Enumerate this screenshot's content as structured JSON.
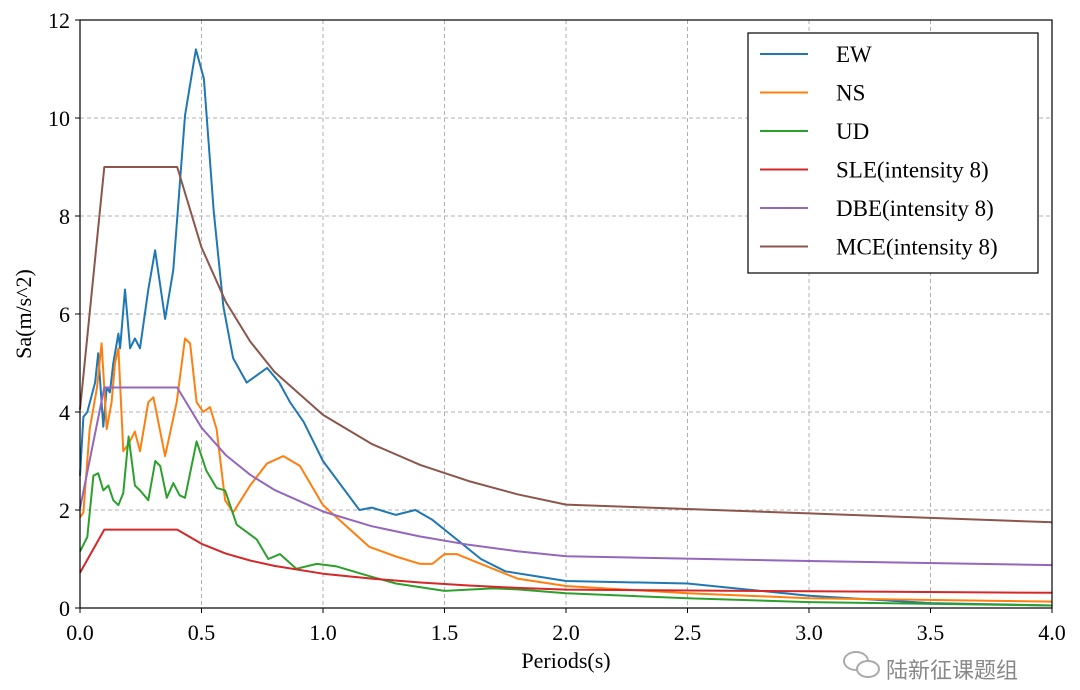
{
  "chart_data": {
    "type": "line",
    "title": "",
    "xlabel": "Periods(s)",
    "ylabel": "Sa(m/s^2)",
    "xlim": [
      0,
      4.0
    ],
    "ylim": [
      0,
      12
    ],
    "xticks": [
      "0.0",
      "0.5",
      "1.0",
      "1.5",
      "2.0",
      "2.5",
      "3.0",
      "3.5",
      "4.0"
    ],
    "yticks": [
      "0",
      "2",
      "4",
      "6",
      "8",
      "10",
      "12"
    ],
    "grid": true,
    "legend_position": "top-right",
    "series": [
      {
        "name": "EW",
        "color": "#1f77b4",
        "x": [
          0,
          0.014,
          0.03,
          0.062,
          0.075,
          0.096,
          0.11,
          0.123,
          0.137,
          0.158,
          0.165,
          0.185,
          0.206,
          0.226,
          0.247,
          0.281,
          0.309,
          0.35,
          0.384,
          0.432,
          0.477,
          0.51,
          0.55,
          0.59,
          0.63,
          0.686,
          0.77,
          0.82,
          0.864,
          0.92,
          1.0,
          1.15,
          1.2,
          1.3,
          1.38,
          1.45,
          1.55,
          1.65,
          1.75,
          2.0,
          2.5,
          3.0,
          3.5,
          4.0
        ],
        "y": [
          2.7,
          3.9,
          4.0,
          4.6,
          5.2,
          3.7,
          4.5,
          4.4,
          5.0,
          5.6,
          5.3,
          6.5,
          5.3,
          5.5,
          5.3,
          6.5,
          7.3,
          5.9,
          6.9,
          10.05,
          11.4,
          10.8,
          8.1,
          6.15,
          5.1,
          4.6,
          4.9,
          4.6,
          4.2,
          3.8,
          3.0,
          2.0,
          2.05,
          1.9,
          2.0,
          1.8,
          1.4,
          1.0,
          0.75,
          0.55,
          0.5,
          0.25,
          0.1,
          0.05
        ]
      },
      {
        "name": "NS",
        "color": "#ff7f0e",
        "x": [
          0,
          0.014,
          0.04,
          0.07,
          0.089,
          0.11,
          0.13,
          0.144,
          0.158,
          0.178,
          0.2,
          0.226,
          0.247,
          0.281,
          0.302,
          0.35,
          0.398,
          0.432,
          0.453,
          0.48,
          0.507,
          0.535,
          0.562,
          0.597,
          0.63,
          0.7,
          0.77,
          0.837,
          0.905,
          1.0,
          1.19,
          1.3,
          1.4,
          1.45,
          1.5,
          1.55,
          1.65,
          1.8,
          2.0,
          2.5,
          3.0,
          4.0
        ],
        "y": [
          1.85,
          1.95,
          3.65,
          4.5,
          5.4,
          3.65,
          4.2,
          5.0,
          5.3,
          3.2,
          3.35,
          3.6,
          3.2,
          4.2,
          4.3,
          3.1,
          4.2,
          5.5,
          5.4,
          4.2,
          4.0,
          4.1,
          3.65,
          2.2,
          1.95,
          2.5,
          2.95,
          3.1,
          2.9,
          2.1,
          1.25,
          1.05,
          0.9,
          0.9,
          1.1,
          1.1,
          0.9,
          0.6,
          0.45,
          0.3,
          0.2,
          0.13
        ]
      },
      {
        "name": "UD",
        "color": "#2ca02c",
        "x": [
          0,
          0.03,
          0.055,
          0.075,
          0.096,
          0.117,
          0.137,
          0.158,
          0.178,
          0.2,
          0.226,
          0.247,
          0.281,
          0.31,
          0.33,
          0.357,
          0.384,
          0.41,
          0.432,
          0.48,
          0.52,
          0.562,
          0.597,
          0.645,
          0.727,
          0.775,
          0.823,
          0.89,
          0.974,
          1.056,
          1.19,
          1.3,
          1.5,
          1.7,
          1.8,
          2.0,
          2.5,
          3.0,
          4.0
        ],
        "y": [
          1.15,
          1.45,
          2.7,
          2.75,
          2.4,
          2.5,
          2.2,
          2.1,
          2.35,
          3.5,
          2.5,
          2.4,
          2.2,
          3.0,
          2.9,
          2.25,
          2.55,
          2.3,
          2.25,
          3.4,
          2.8,
          2.45,
          2.4,
          1.7,
          1.4,
          1.0,
          1.1,
          0.8,
          0.9,
          0.85,
          0.65,
          0.5,
          0.35,
          0.4,
          0.38,
          0.3,
          0.2,
          0.12,
          0.05
        ]
      },
      {
        "name": "SLE(intensity 8)",
        "color": "#d62728",
        "x": [
          0,
          0.1,
          0.4,
          0.5,
          0.6,
          0.7,
          0.8,
          1.0,
          1.2,
          1.4,
          1.6,
          1.8,
          2.0,
          3.0,
          4.0
        ],
        "y": [
          0.72,
          1.6,
          1.6,
          1.31,
          1.11,
          0.97,
          0.86,
          0.7,
          0.6,
          0.52,
          0.46,
          0.41,
          0.375,
          0.34,
          0.31
        ]
      },
      {
        "name": "DBE(intensity 8)",
        "color": "#9467bd",
        "x": [
          0,
          0.1,
          0.4,
          0.5,
          0.6,
          0.7,
          0.8,
          1.0,
          1.2,
          1.4,
          1.6,
          1.8,
          2.0,
          3.0,
          4.0
        ],
        "y": [
          2.03,
          4.5,
          4.5,
          3.68,
          3.12,
          2.72,
          2.41,
          1.97,
          1.67,
          1.46,
          1.29,
          1.16,
          1.055,
          0.96,
          0.875
        ]
      },
      {
        "name": "MCE(intensity 8)",
        "color": "#8c564b",
        "x": [
          0,
          0.1,
          0.4,
          0.5,
          0.6,
          0.7,
          0.8,
          1.0,
          1.2,
          1.4,
          1.6,
          1.8,
          2.0,
          3.0,
          4.0
        ],
        "y": [
          4.05,
          9.0,
          9.0,
          7.36,
          6.25,
          5.44,
          4.82,
          3.94,
          3.35,
          2.92,
          2.59,
          2.32,
          2.11,
          1.93,
          1.75
        ]
      }
    ]
  },
  "watermark": "陆新征课题组"
}
